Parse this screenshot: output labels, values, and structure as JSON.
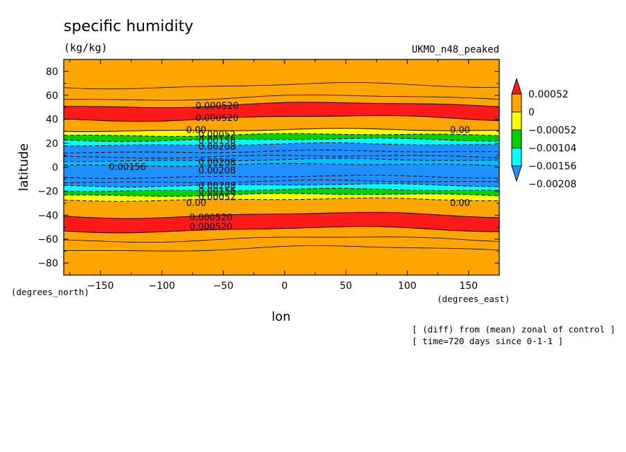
{
  "title": "specific humidity",
  "units": "(kg/kg)",
  "model": "UKMO_n48_peaked",
  "footnotes": [
    "[ (diff) from (mean) zonal of control ]",
    "[ time=720 days since 0-1-1 ]"
  ],
  "chart_data": {
    "type": "contour",
    "xlabel": "lon",
    "ylabel": "latitude",
    "x_units": "(degrees_east)",
    "y_units": "(degrees_north)",
    "xlim": [
      -180,
      175
    ],
    "ylim": [
      -90,
      90
    ],
    "x_ticks": [
      -150,
      -100,
      -50,
      0,
      50,
      100,
      150
    ],
    "y_ticks": [
      80,
      60,
      40,
      20,
      0,
      -20,
      -40,
      -60,
      -80
    ],
    "x_tick_labels": [
      "−150",
      "−100",
      "−50",
      "0",
      "50",
      "100",
      "150"
    ],
    "y_tick_labels": [
      "80",
      "60",
      "40",
      "20",
      "0",
      "−20",
      "−40",
      "−60",
      "−80"
    ],
    "legend": {
      "placement": "right",
      "levels": [
        "0.00052",
        "0",
        "−0.00052",
        "−0.00104",
        "−0.00156",
        "−0.00208"
      ],
      "colors": [
        "#ff1a1a",
        "#ffa500",
        "#ffff00",
        "#00d000",
        "#00ffff",
        "#1e90ff"
      ]
    },
    "bands": [
      {
        "lat_min": -90,
        "lat_max": -52,
        "color": "#ffa500",
        "label": "0 to 0.00052"
      },
      {
        "lat_min": -52,
        "lat_max": -40,
        "color": "#ff1a1a",
        "label": "> 0.00052"
      },
      {
        "lat_min": -40,
        "lat_max": -27,
        "color": "#ffa500",
        "label": "0 to 0.00052"
      },
      {
        "lat_min": -27,
        "lat_max": -23,
        "color": "#ffff00",
        "label": "-0.00052 to 0"
      },
      {
        "lat_min": -23,
        "lat_max": -19,
        "color": "#00d000",
        "label": "-0.00104 to -0.00052"
      },
      {
        "lat_min": -19,
        "lat_max": -15,
        "color": "#00ffff",
        "label": "-0.00156 to -0.00104"
      },
      {
        "lat_min": -15,
        "lat_max": 2,
        "color": "#1e90ff",
        "label": "< -0.00156"
      },
      {
        "lat_min": 2,
        "lat_max": 6,
        "color": "#00bfff",
        "label": "-0.00208 to -0.00156"
      },
      {
        "lat_min": 6,
        "lat_max": 19,
        "color": "#1e90ff",
        "label": "< -0.00156"
      },
      {
        "lat_min": 19,
        "lat_max": 23,
        "color": "#00ffff",
        "label": "-0.00156 to -0.00104"
      },
      {
        "lat_min": 23,
        "lat_max": 27,
        "color": "#00d000",
        "label": "-0.00104 to -0.00052"
      },
      {
        "lat_min": 27,
        "lat_max": 31,
        "color": "#ffff00",
        "label": "-0.00052 to 0"
      },
      {
        "lat_min": 31,
        "lat_max": 41,
        "color": "#ffa500",
        "label": "0 to 0.00052"
      },
      {
        "lat_min": 41,
        "lat_max": 52,
        "color": "#ff1a1a",
        "label": "> 0.00052"
      },
      {
        "lat_min": 52,
        "lat_max": 90,
        "color": "#ffa500",
        "label": "0 to 0.00052"
      }
    ],
    "contour_labels": [
      {
        "text": "0.000520",
        "lon": -55,
        "lat": 51
      },
      {
        "text": "0.000520",
        "lon": -55,
        "lat": 41
      },
      {
        "text": "0.00",
        "lon": -72,
        "lat": 31
      },
      {
        "text": "0.00052",
        "lon": -55,
        "lat": 27
      },
      {
        "text": "0.00156",
        "lon": -55,
        "lat": 22
      },
      {
        "text": "0.00208",
        "lon": -55,
        "lat": 17
      },
      {
        "text": "0.00208",
        "lon": -55,
        "lat": 4
      },
      {
        "text": "0.00208",
        "lon": -55,
        "lat": -3
      },
      {
        "text": "0.00156",
        "lon": -128,
        "lat": 0
      },
      {
        "text": "0.00208",
        "lon": -55,
        "lat": -16
      },
      {
        "text": "0.00156",
        "lon": -55,
        "lat": -20
      },
      {
        "text": "0.00052",
        "lon": -55,
        "lat": -25
      },
      {
        "text": "0.00",
        "lon": -72,
        "lat": -30
      },
      {
        "text": "0.000520",
        "lon": -60,
        "lat": -42
      },
      {
        "text": "0.000520",
        "lon": -60,
        "lat": -50
      },
      {
        "text": "0.00",
        "lon": 143,
        "lat": 31
      },
      {
        "text": "0.00",
        "lon": 143,
        "lat": -30
      }
    ]
  }
}
